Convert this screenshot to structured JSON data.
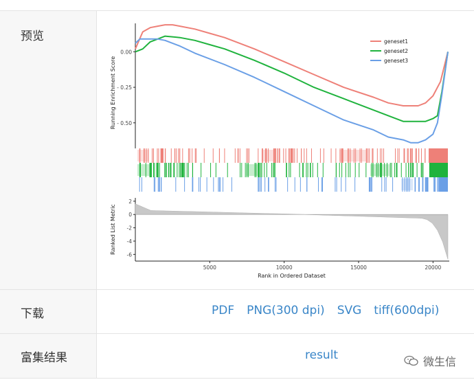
{
  "rows": {
    "preview_label": "预览",
    "download_label": "下载",
    "enrich_label": "富集结果"
  },
  "downloads": [
    {
      "label": "PDF"
    },
    {
      "label": "PNG(300 dpi)"
    },
    {
      "label": "SVG"
    },
    {
      "label": "tiff(600dpi)"
    }
  ],
  "result_label": "result",
  "watermark": "微生信",
  "colors": {
    "geneset1": "#ee8078",
    "geneset2": "#1fb33d",
    "geneset3": "#6a9fe6",
    "link": "#3a86c8"
  },
  "chart_data": {
    "type": "line",
    "ylabel_top": "Running Enrichment Score",
    "ylabel_bottom": "Ranked List Metric",
    "xlabel": "Rank in Ordered Dataset",
    "xticks": [
      5000,
      10000,
      15000,
      20000
    ],
    "yticks_top": [
      "0.00",
      "0.25",
      "0.50"
    ],
    "yticks_bottom": [
      "2",
      "0",
      "-2",
      "-4",
      "-6"
    ],
    "xlim": [
      0,
      21000
    ],
    "ylim_top": [
      -0.68,
      0.2
    ],
    "ylim_bottom": [
      -7,
      2.5
    ],
    "series": [
      {
        "name": "geneset1",
        "x": [
          0,
          500,
          1000,
          1500,
          2000,
          2500,
          3000,
          4000,
          5000,
          6000,
          8000,
          10000,
          12000,
          14000,
          16000,
          17000,
          18000,
          19000,
          19500,
          20000,
          20500,
          21000
        ],
        "values": [
          0.02,
          0.14,
          0.17,
          0.18,
          0.19,
          0.19,
          0.18,
          0.16,
          0.13,
          0.1,
          0.02,
          -0.07,
          -0.16,
          -0.25,
          -0.32,
          -0.36,
          -0.38,
          -0.38,
          -0.36,
          -0.31,
          -0.21,
          0.0
        ]
      },
      {
        "name": "geneset2",
        "x": [
          0,
          500,
          1000,
          1500,
          2000,
          3000,
          4000,
          5000,
          6000,
          8000,
          10000,
          12000,
          14000,
          16000,
          17000,
          18000,
          19000,
          19500,
          20000,
          20300,
          20600,
          21000
        ],
        "values": [
          0.0,
          0.02,
          0.07,
          0.09,
          0.11,
          0.1,
          0.08,
          0.05,
          0.02,
          -0.06,
          -0.15,
          -0.25,
          -0.33,
          -0.41,
          -0.45,
          -0.49,
          -0.49,
          -0.49,
          -0.47,
          -0.45,
          -0.28,
          0.0
        ]
      },
      {
        "name": "geneset3",
        "x": [
          0,
          300,
          600,
          1000,
          1500,
          2000,
          3000,
          4000,
          6000,
          8000,
          10000,
          12000,
          14000,
          16000,
          17000,
          18000,
          18500,
          19000,
          19500,
          20000,
          20300,
          20600,
          21000
        ],
        "values": [
          0.06,
          0.09,
          0.09,
          0.09,
          0.09,
          0.08,
          0.04,
          -0.01,
          -0.09,
          -0.18,
          -0.28,
          -0.38,
          -0.48,
          -0.55,
          -0.6,
          -0.62,
          -0.64,
          -0.64,
          -0.62,
          -0.58,
          -0.5,
          -0.3,
          0.0
        ]
      }
    ]
  }
}
